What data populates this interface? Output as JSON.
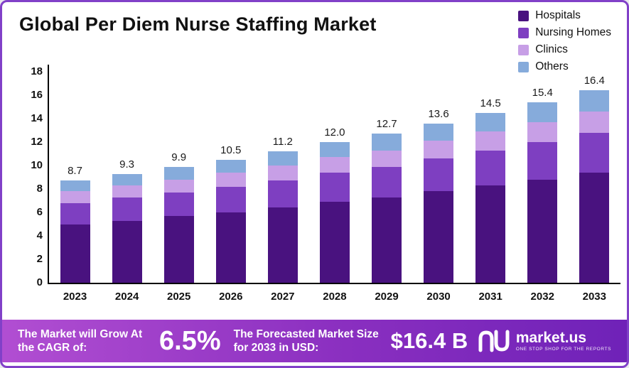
{
  "title": "Global Per Diem Nurse Staffing Market",
  "legend": [
    {
      "label": "Hospitals",
      "color": "#49127f"
    },
    {
      "label": "Nursing Homes",
      "color": "#7e3fc1"
    },
    {
      "label": "Clinics",
      "color": "#c79fe6"
    },
    {
      "label": "Others",
      "color": "#86abdb"
    }
  ],
  "chart_data": {
    "type": "bar",
    "stacked": true,
    "title": "Global Per Diem Nurse Staffing Market",
    "categories": [
      "2023",
      "2024",
      "2025",
      "2026",
      "2027",
      "2028",
      "2029",
      "2030",
      "2031",
      "2032",
      "2033"
    ],
    "totals": [
      "8.7",
      "9.3",
      "9.9",
      "10.5",
      "11.2",
      "12.0",
      "12.7",
      "13.6",
      "14.5",
      "15.4",
      "16.4"
    ],
    "series": [
      {
        "name": "Hospitals",
        "color": "#49127f",
        "values": [
          5.0,
          5.3,
          5.7,
          6.0,
          6.4,
          6.9,
          7.3,
          7.8,
          8.3,
          8.8,
          9.4
        ]
      },
      {
        "name": "Nursing Homes",
        "color": "#7e3fc1",
        "values": [
          1.8,
          2.0,
          2.0,
          2.2,
          2.3,
          2.5,
          2.6,
          2.8,
          3.0,
          3.2,
          3.4
        ]
      },
      {
        "name": "Clinics",
        "color": "#c79fe6",
        "values": [
          1.0,
          1.0,
          1.1,
          1.2,
          1.3,
          1.3,
          1.4,
          1.5,
          1.6,
          1.7,
          1.8
        ]
      },
      {
        "name": "Others",
        "color": "#86abdb",
        "values": [
          0.9,
          1.0,
          1.1,
          1.1,
          1.2,
          1.3,
          1.4,
          1.5,
          1.6,
          1.7,
          1.8
        ]
      }
    ],
    "xlabel": "",
    "ylabel": "",
    "ylim": [
      0,
      18
    ],
    "yticks": [
      0,
      2,
      4,
      6,
      8,
      10,
      12,
      14,
      16,
      18
    ],
    "grid": false,
    "legend_position": "top-right"
  },
  "footer": {
    "cagr_label": "The Market will Grow At the CAGR of:",
    "cagr_value": "6.5%",
    "forecast_label": "The Forecasted Market Size for 2033 in USD:",
    "forecast_value": "$16.4 B",
    "brand": "market.us",
    "brand_tagline": "One Stop Shop For The Reports"
  }
}
